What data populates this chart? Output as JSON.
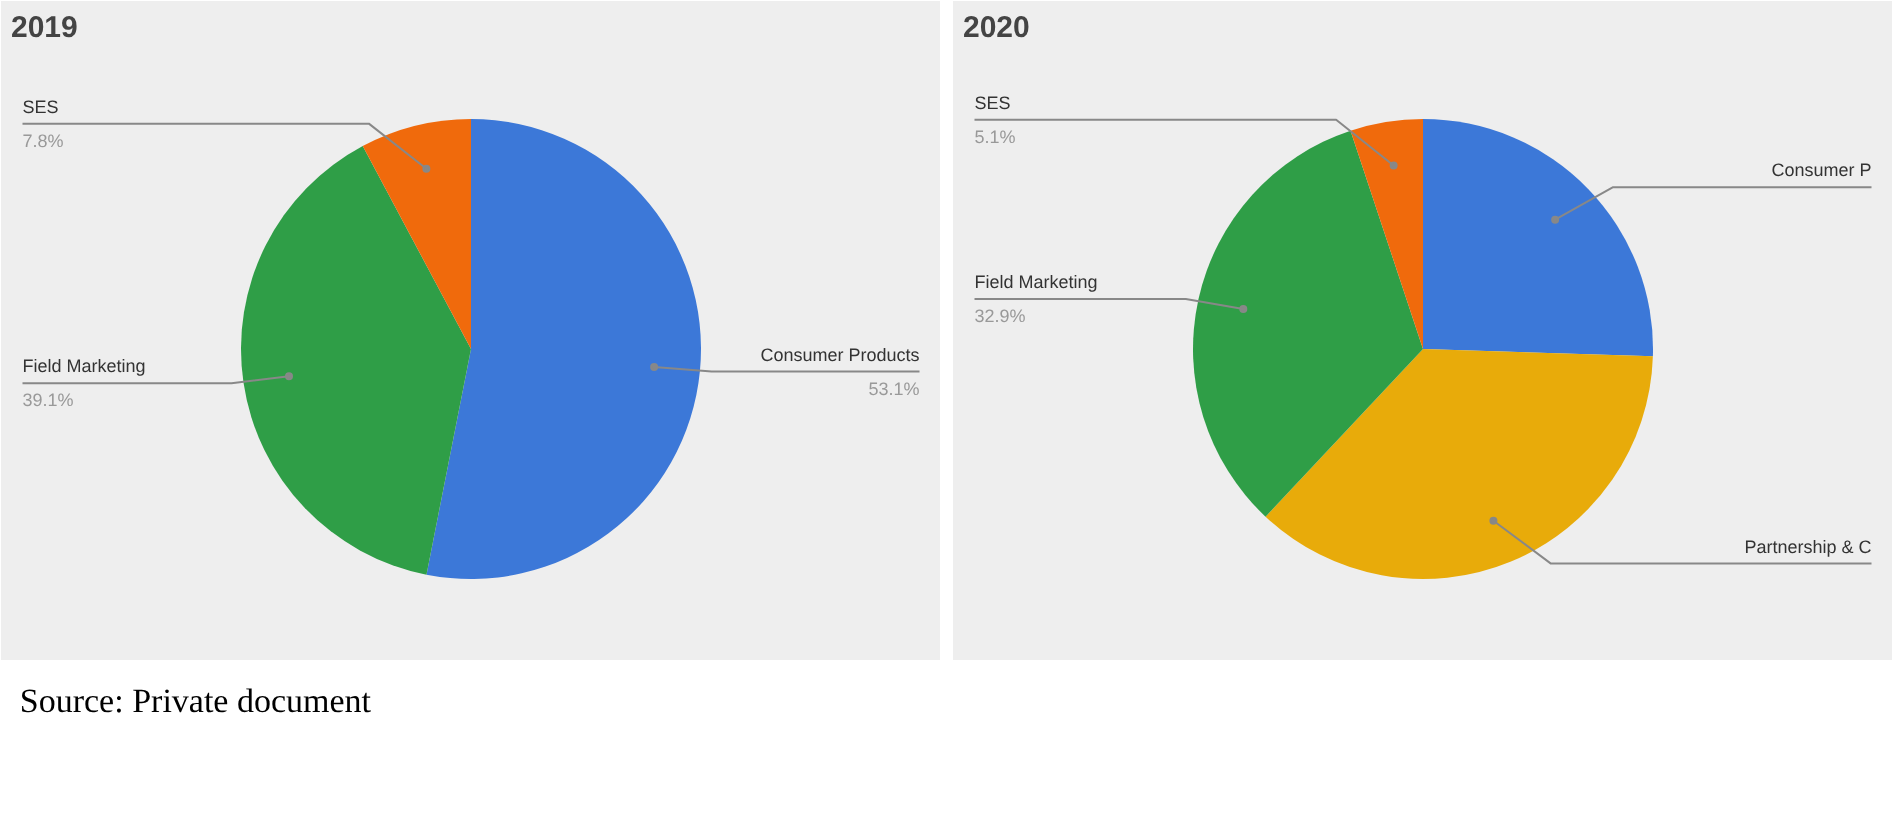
{
  "chart_data": [
    {
      "type": "pie",
      "title": "2019",
      "categories": [
        "Consumer Products",
        "Field Marketing",
        "SES"
      ],
      "values": [
        53.1,
        39.1,
        7.8
      ],
      "value_labels": [
        "53.1%",
        "39.1%",
        "7.8%"
      ],
      "colors": [
        "#3c78d8",
        "#2f9e47",
        "#f06a0c"
      ],
      "annotations": [
        "Source: Private document"
      ]
    },
    {
      "type": "pie",
      "title": "2020",
      "categories": [
        "Consumer P",
        "Partnership & C",
        "Field Marketing",
        "SES"
      ],
      "values": [
        25.5,
        36.5,
        32.9,
        5.1
      ],
      "value_labels": [
        null,
        null,
        "32.9%",
        "5.1%"
      ],
      "colors": [
        "#3c78d8",
        "#e8ab0a",
        "#2f9e47",
        "#f06a0c"
      ]
    }
  ]
}
